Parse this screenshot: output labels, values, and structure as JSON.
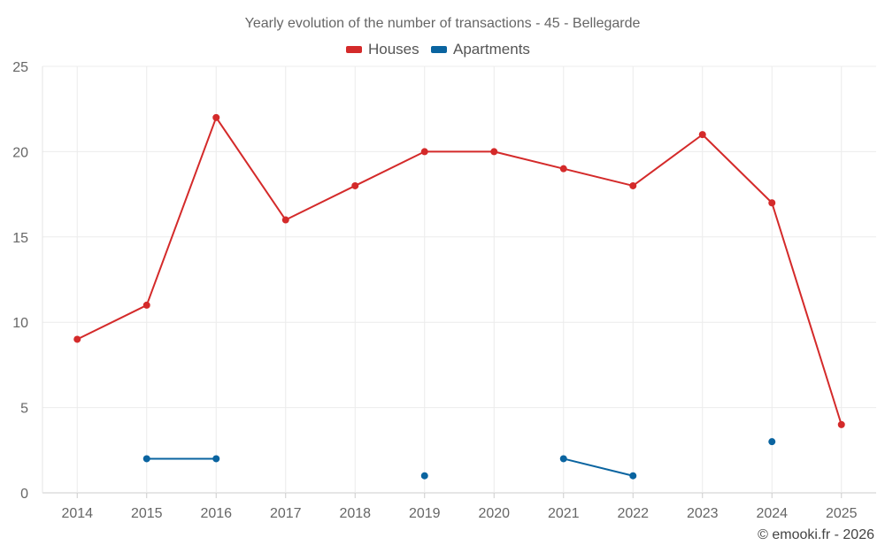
{
  "chart_data": {
    "type": "line",
    "title": "Yearly evolution of the number of transactions - 45 - Bellegarde",
    "categories": [
      "2014",
      "2015",
      "2016",
      "2017",
      "2018",
      "2019",
      "2020",
      "2021",
      "2022",
      "2023",
      "2024",
      "2025"
    ],
    "ylim": [
      0,
      25
    ],
    "yticks": [
      0,
      5,
      10,
      15,
      20,
      25
    ],
    "grid": true,
    "legend_position": "top-center",
    "series": [
      {
        "name": "Houses",
        "color": "#d42a2a",
        "values": [
          9,
          11,
          22,
          16,
          18,
          20,
          20,
          19,
          18,
          21,
          17,
          4
        ]
      },
      {
        "name": "Apartments",
        "color": "#0a64a0",
        "values": [
          null,
          2,
          2,
          null,
          null,
          1,
          null,
          2,
          1,
          null,
          3,
          null
        ]
      }
    ],
    "xlabel": "",
    "ylabel": ""
  },
  "credit": "© emooki.fr - 2026"
}
